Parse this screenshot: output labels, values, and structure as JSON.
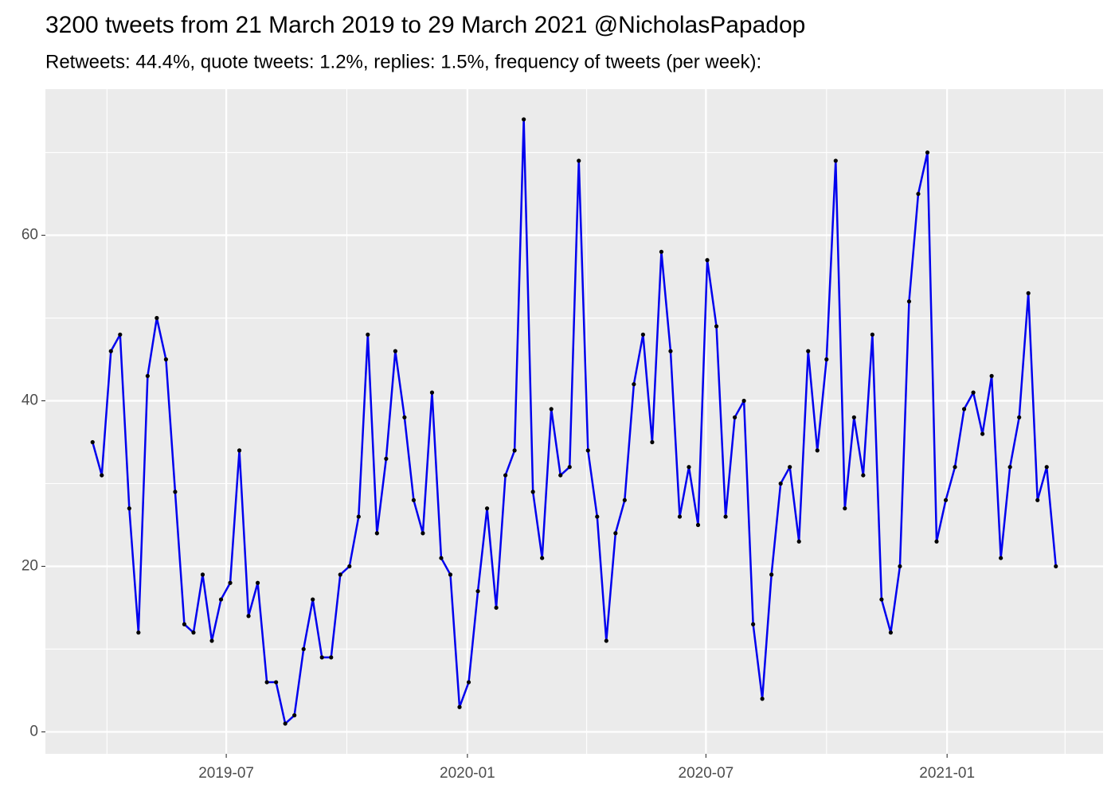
{
  "chart_data": {
    "type": "line",
    "title": "3200 tweets from 21 March 2019 to 29 March 2021 @NicholasPapadop",
    "subtitle": "Retweets: 44.4%, quote tweets: 1.2%, replies: 1.5%, frequency of tweets (per week):",
    "x": [
      "2019-03-21",
      "2019-03-28",
      "2019-04-04",
      "2019-04-11",
      "2019-04-18",
      "2019-04-25",
      "2019-05-02",
      "2019-05-09",
      "2019-05-16",
      "2019-05-23",
      "2019-05-30",
      "2019-06-06",
      "2019-06-13",
      "2019-06-20",
      "2019-06-27",
      "2019-07-04",
      "2019-07-11",
      "2019-07-18",
      "2019-07-25",
      "2019-08-01",
      "2019-08-08",
      "2019-08-15",
      "2019-08-22",
      "2019-08-29",
      "2019-09-05",
      "2019-09-12",
      "2019-09-19",
      "2019-09-26",
      "2019-10-03",
      "2019-10-10",
      "2019-10-17",
      "2019-10-24",
      "2019-10-31",
      "2019-11-07",
      "2019-11-14",
      "2019-11-21",
      "2019-11-28",
      "2019-12-05",
      "2019-12-12",
      "2019-12-19",
      "2019-12-26",
      "2020-01-02",
      "2020-01-09",
      "2020-01-16",
      "2020-01-23",
      "2020-01-30",
      "2020-02-06",
      "2020-02-13",
      "2020-02-20",
      "2020-02-27",
      "2020-03-05",
      "2020-03-12",
      "2020-03-19",
      "2020-03-26",
      "2020-04-02",
      "2020-04-09",
      "2020-04-16",
      "2020-04-23",
      "2020-04-30",
      "2020-05-07",
      "2020-05-14",
      "2020-05-21",
      "2020-05-28",
      "2020-06-04",
      "2020-06-11",
      "2020-06-18",
      "2020-06-25",
      "2020-07-02",
      "2020-07-09",
      "2020-07-16",
      "2020-07-23",
      "2020-07-30",
      "2020-08-06",
      "2020-08-13",
      "2020-08-20",
      "2020-08-27",
      "2020-09-03",
      "2020-09-10",
      "2020-09-17",
      "2020-09-24",
      "2020-10-01",
      "2020-10-08",
      "2020-10-15",
      "2020-10-22",
      "2020-10-29",
      "2020-11-05",
      "2020-11-12",
      "2020-11-19",
      "2020-11-26",
      "2020-12-03",
      "2020-12-10",
      "2020-12-17",
      "2020-12-24",
      "2020-12-31",
      "2021-01-07",
      "2021-01-14",
      "2021-01-21",
      "2021-01-28",
      "2021-02-04",
      "2021-02-11",
      "2021-02-18",
      "2021-02-25",
      "2021-03-04",
      "2021-03-11",
      "2021-03-18",
      "2021-03-25"
    ],
    "series": [
      {
        "color": "#0000ee",
        "marker_color": "#000000",
        "values": [
          35,
          31,
          46,
          48,
          27,
          12,
          43,
          50,
          45,
          29,
          13,
          12,
          19,
          11,
          16,
          18,
          34,
          14,
          18,
          6,
          6,
          1,
          2,
          10,
          16,
          9,
          9,
          19,
          20,
          26,
          48,
          24,
          33,
          46,
          38,
          28,
          24,
          41,
          21,
          19,
          3,
          6,
          17,
          27,
          15,
          31,
          34,
          74,
          29,
          21,
          39,
          31,
          32,
          69,
          34,
          26,
          11,
          24,
          28,
          42,
          48,
          35,
          58,
          46,
          26,
          32,
          25,
          57,
          49,
          26,
          38,
          40,
          13,
          4,
          19,
          30,
          32,
          23,
          46,
          34,
          45,
          69,
          27,
          38,
          31,
          48,
          16,
          12,
          20,
          52,
          65,
          70,
          23,
          28,
          32,
          39,
          41,
          36,
          43,
          21,
          32,
          38,
          53,
          28,
          32,
          20
        ]
      }
    ],
    "xlim": [
      "2019-02-13",
      "2021-04-30"
    ],
    "xticks": [
      {
        "value": "2019-07-01",
        "label": "2019-07"
      },
      {
        "value": "2020-01-01",
        "label": "2020-01"
      },
      {
        "value": "2020-07-01",
        "label": "2020-07"
      },
      {
        "value": "2021-01-01",
        "label": "2021-01"
      }
    ],
    "minor_xticks": [
      "2019-04-01",
      "2019-10-01",
      "2020-04-01",
      "2020-10-01",
      "2021-04-01"
    ],
    "ylim": [
      -2.65,
      77.65
    ],
    "yticks": [
      0,
      20,
      40,
      60
    ],
    "minor_yticks": [
      10,
      30,
      50,
      70
    ],
    "grid": true
  }
}
